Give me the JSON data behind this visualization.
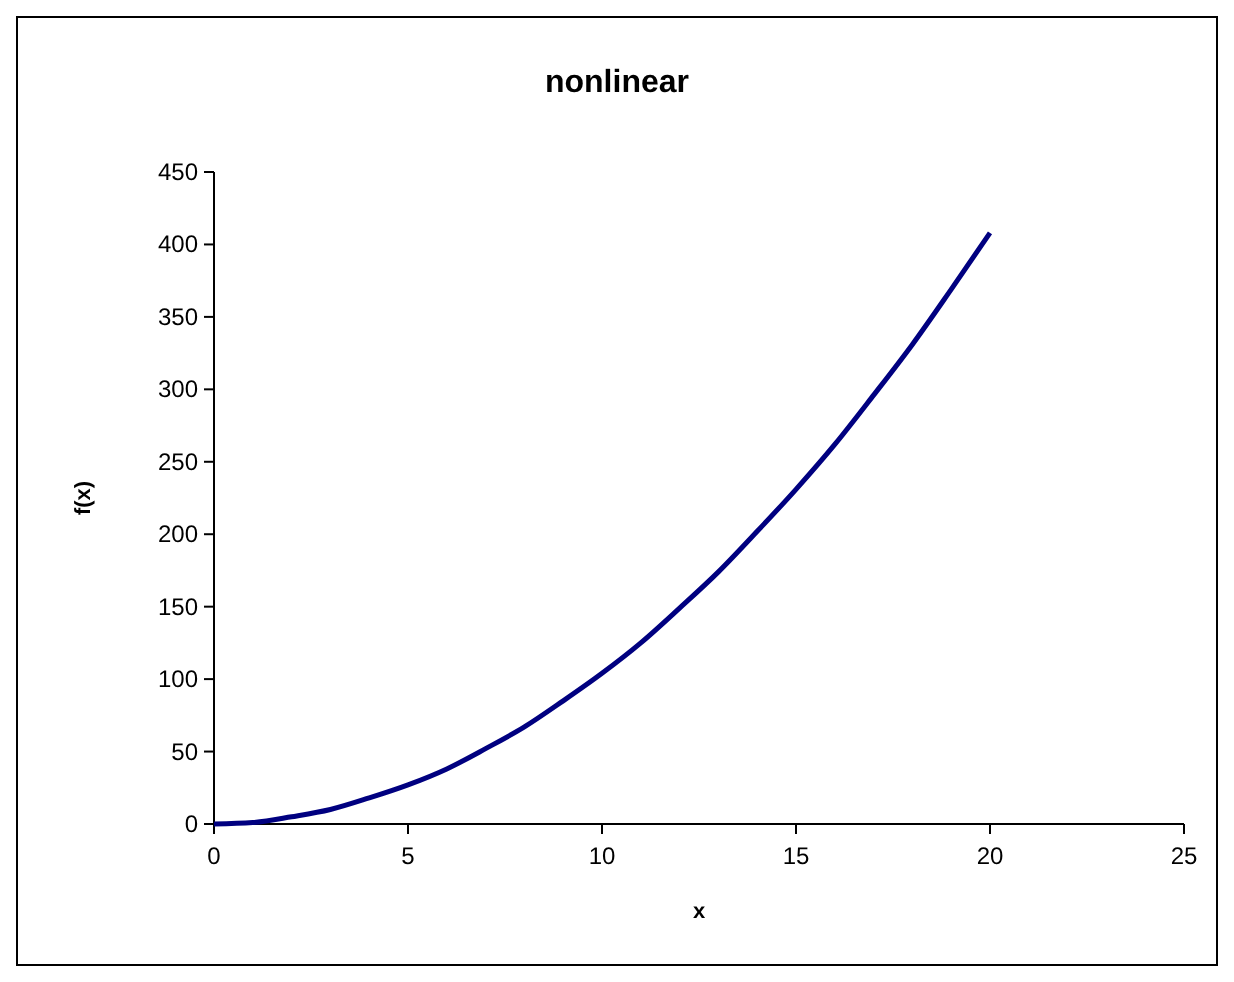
{
  "chart_data": {
    "type": "line",
    "title": "nonlinear",
    "xlabel": "x",
    "ylabel": "f(x)",
    "x": [
      0,
      1,
      2,
      3,
      4,
      5,
      6,
      7,
      8,
      9,
      10,
      11,
      12,
      13,
      14,
      15,
      16,
      17,
      18,
      19,
      20
    ],
    "series": [
      {
        "color": "#000080",
        "values": [
          0,
          1,
          5,
          10,
          18,
          27,
          38,
          52,
          67,
          85,
          104,
          125,
          149,
          174,
          202,
          231,
          262,
          296,
          331,
          369,
          408
        ]
      }
    ],
    "xlim": [
      0,
      25
    ],
    "xticks": [
      0,
      5,
      10,
      15,
      20,
      25
    ],
    "ylim": [
      0,
      450
    ],
    "yticks": [
      0,
      50,
      100,
      150,
      200,
      250,
      300,
      350,
      400,
      450
    ],
    "grid": false,
    "marker": "none",
    "line_style": "solid"
  }
}
